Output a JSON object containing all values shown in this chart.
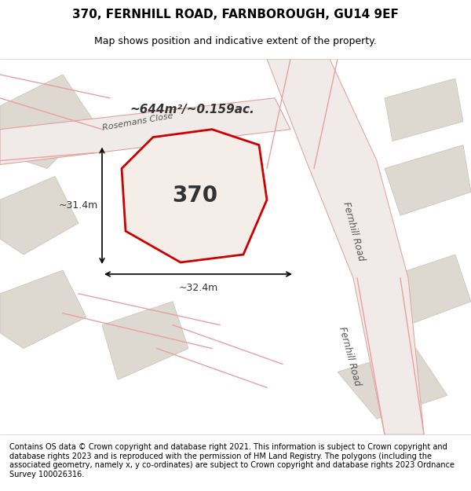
{
  "title": "370, FERNHILL ROAD, FARNBOROUGH, GU14 9EF",
  "subtitle": "Map shows position and indicative extent of the property.",
  "footer": "Contains OS data © Crown copyright and database right 2021. This information is subject to Crown copyright and database rights 2023 and is reproduced with the permission of HM Land Registry. The polygons (including the associated geometry, namely x, y co-ordinates) are subject to Crown copyright and database rights 2023 Ordnance Survey 100026316.",
  "background_color": "#e8e8e8",
  "map_background": "#f0ede8",
  "plot_color_fill": "#f0ede8",
  "road_color": "#f5f5f5",
  "highlight_fill": "none",
  "highlight_edge": "#e00000",
  "road_line_color": "#f08080",
  "area_text": "~644m²/~0.159ac.",
  "plot_label": "370",
  "dim_width": "~32.4m",
  "dim_height": "~31.4m",
  "label_road1": "Fernhill Road",
  "label_road2": "Fernhill Road",
  "label_close": "Rosemans Close",
  "title_fontsize": 11,
  "subtitle_fontsize": 9,
  "footer_fontsize": 7
}
